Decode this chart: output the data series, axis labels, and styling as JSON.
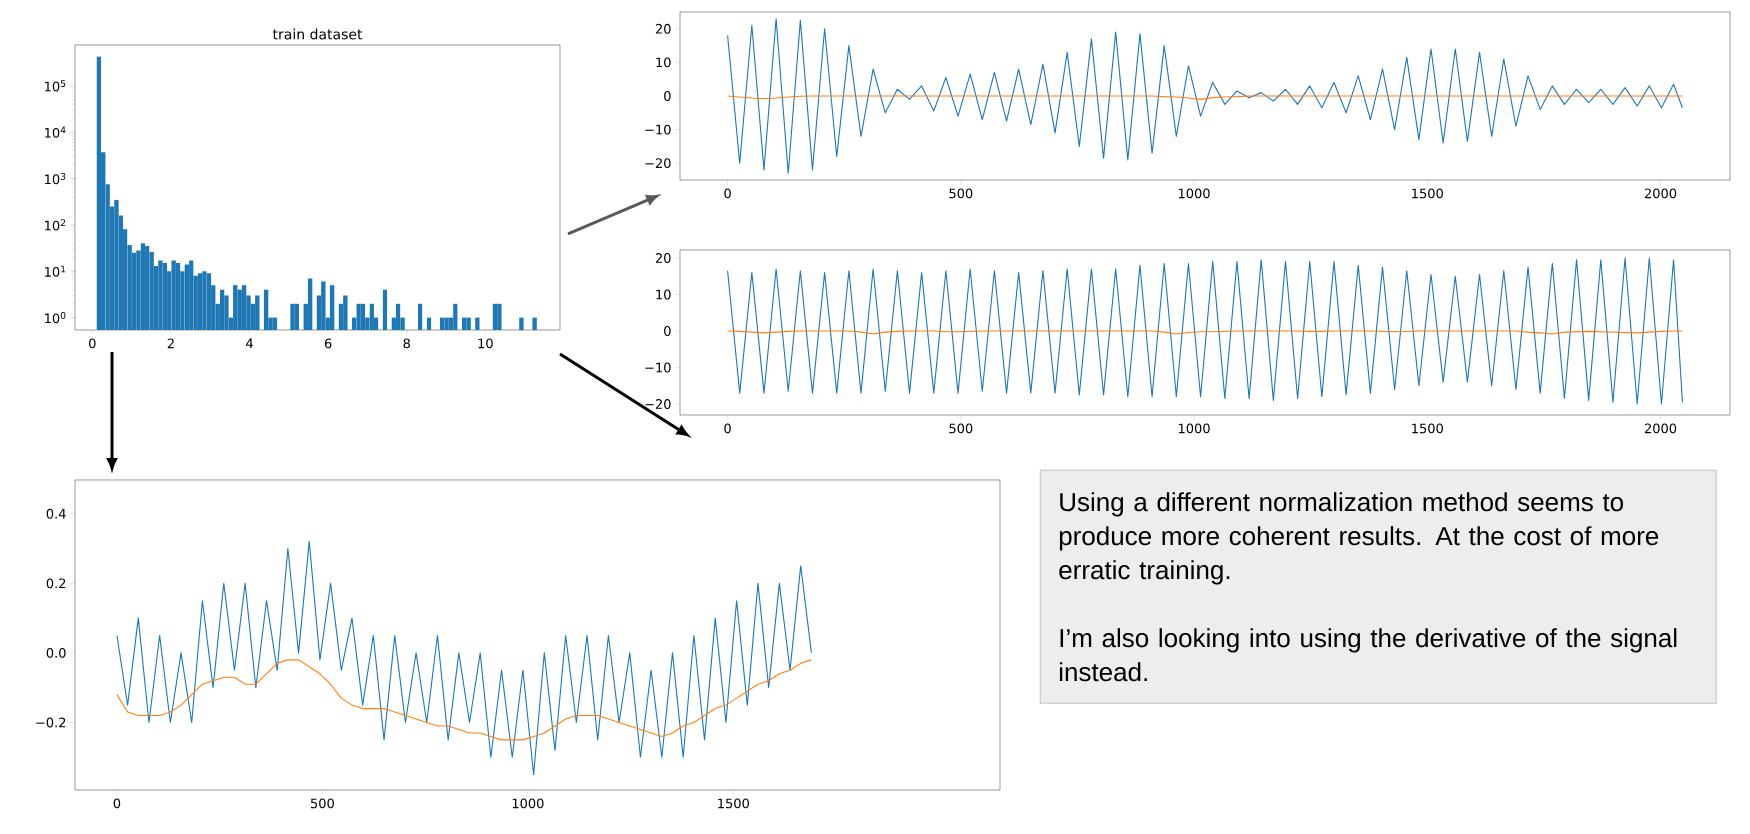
{
  "chart_data": [
    {
      "type": "histogram",
      "title": "train dataset",
      "color": "#1f77b4",
      "log": "y",
      "bins": [
        0.11,
        0.222,
        0.334,
        0.446,
        0.558,
        0.67,
        0.782,
        0.894,
        1.006,
        1.118,
        1.23,
        1.342,
        1.454,
        1.566,
        1.678,
        1.79,
        1.902,
        2.014,
        2.126,
        2.238,
        2.35,
        2.462,
        2.574,
        2.686,
        2.798,
        2.91,
        3.022,
        3.134,
        3.246,
        3.358,
        3.47,
        3.582,
        3.694,
        3.806,
        3.918,
        4.03,
        4.142,
        4.254,
        4.366,
        4.478,
        4.59,
        4.702,
        4.814,
        4.926,
        5.038,
        5.15,
        5.262,
        5.374,
        5.486,
        5.598,
        5.71,
        5.822,
        5.934,
        6.046,
        6.158,
        6.27,
        6.382,
        6.494,
        6.606,
        6.718,
        6.83,
        6.942,
        7.054,
        7.166,
        7.278,
        7.39,
        7.502,
        7.614,
        7.726,
        7.838,
        7.95,
        8.062,
        8.174,
        8.286,
        8.398,
        8.51,
        8.622,
        8.734,
        8.846,
        8.958,
        9.07,
        9.182,
        9.294,
        9.406,
        9.518,
        9.63,
        9.742,
        9.854,
        9.966,
        10.078,
        10.19,
        10.302,
        10.414,
        10.526,
        10.638,
        10.75,
        10.862,
        10.974,
        11.086,
        11.198,
        11.31
      ],
      "values": [
        430000,
        3700,
        750,
        250,
        345,
        160,
        80,
        37,
        25,
        28,
        40,
        35,
        26,
        13,
        17,
        15,
        10,
        17,
        15,
        10,
        14,
        17,
        8,
        9,
        10,
        9,
        5,
        2,
        4,
        3,
        1,
        5,
        4,
        5,
        3,
        2,
        3,
        null,
        4,
        1,
        1,
        null,
        null,
        null,
        2,
        2,
        null,
        2,
        7,
        null,
        3,
        6,
        1,
        5,
        null,
        2,
        3,
        null,
        1,
        2,
        2,
        1,
        2,
        1,
        null,
        4,
        null,
        1,
        2,
        1,
        null,
        null,
        null,
        2,
        null,
        1,
        null,
        null,
        1,
        1,
        1,
        2,
        null,
        1,
        1,
        null,
        1,
        null,
        null,
        null,
        2,
        2,
        null,
        null,
        null,
        null,
        1,
        null,
        null,
        1
      ],
      "xlim": [
        -0.44,
        11.9
      ],
      "ylim": [
        0.54,
        760000
      ],
      "xticks": [
        0,
        2,
        4,
        6,
        8,
        10
      ],
      "yticks": [
        {
          "value": 1,
          "label": "10$^{0}$"
        },
        {
          "value": 10,
          "label": "10$^{1}$"
        },
        {
          "value": 100,
          "label": "10$^{2}$"
        },
        {
          "value": 1000,
          "label": "10$^{3}$"
        },
        {
          "value": 10000,
          "label": "10$^{4}$"
        },
        {
          "value": 100000,
          "label": "10$^{5}$"
        }
      ]
    },
    {
      "type": "line",
      "x": [
        0,
        26,
        52,
        78,
        104,
        130,
        156,
        182,
        208,
        234,
        260,
        286,
        312,
        338,
        364,
        390,
        416,
        442,
        468,
        494,
        520,
        546,
        572,
        598,
        624,
        650,
        676,
        702,
        728,
        754,
        780,
        806,
        832,
        858,
        884,
        910,
        936,
        962,
        988,
        1014,
        1040,
        1066,
        1092,
        1118,
        1144,
        1170,
        1196,
        1222,
        1248,
        1274,
        1300,
        1326,
        1352,
        1378,
        1404,
        1430,
        1456,
        1482,
        1508,
        1534,
        1560,
        1586,
        1612,
        1638,
        1664,
        1690,
        1716,
        1742,
        1768,
        1794,
        1820,
        1846,
        1872,
        1898,
        1924,
        1950,
        1976,
        2002,
        2028,
        2047
      ],
      "series": [
        {
          "color": "#1f77b4",
          "values": [
            18,
            -20,
            21,
            -22,
            23,
            -23,
            22.5,
            -22,
            20,
            -18,
            15,
            -12,
            8,
            -5,
            2,
            -1,
            3,
            -4.5,
            5.5,
            -6,
            6.5,
            -7,
            7,
            -7.5,
            8,
            -8.5,
            9.5,
            -11,
            13,
            -15,
            17,
            -18.5,
            19,
            -19,
            18.5,
            -17,
            15,
            -12,
            9,
            -6,
            4,
            -2.5,
            1.5,
            -0.5,
            1,
            -1.5,
            2,
            -2.5,
            3,
            -3.5,
            4,
            -5,
            6,
            -7,
            8,
            -10,
            11.5,
            -13,
            14,
            -14,
            14,
            -13.5,
            13,
            -12,
            11,
            -9,
            6,
            -4,
            3,
            -2.5,
            2,
            -2,
            2,
            -2.5,
            2.5,
            -3,
            3,
            -3.5,
            3.5,
            -3.5
          ]
        },
        {
          "color": "#ff7f0e",
          "values": [
            0,
            -0.3,
            -0.6,
            -0.8,
            -0.6,
            -0.3,
            -0.1,
            0,
            0,
            0,
            0,
            0,
            0,
            0,
            0,
            0,
            0,
            0,
            0,
            0,
            0,
            0,
            0,
            0,
            0,
            0,
            0,
            0,
            0,
            0,
            0,
            0,
            0,
            0,
            0,
            0,
            -0.2,
            -0.3,
            -0.6,
            -1,
            -0.5,
            -0.3,
            -0.2,
            0,
            0,
            0,
            0,
            0,
            0,
            0,
            0,
            0,
            0,
            0,
            0,
            0,
            0,
            0,
            0,
            0,
            0,
            0,
            0,
            0,
            0,
            0,
            0,
            0,
            0,
            0,
            0,
            0,
            0,
            0,
            0,
            0,
            0,
            0,
            0,
            0
          ]
        }
      ],
      "xlim": [
        -102,
        2149
      ],
      "ylim": [
        -25,
        25
      ],
      "xticks": [
        0,
        500,
        1000,
        1500,
        2000
      ],
      "yticks": [
        {
          "value": -20,
          "label": "−20"
        },
        {
          "value": -10,
          "label": "−10"
        },
        0,
        10,
        20
      ]
    },
    {
      "type": "line",
      "x": [
        0,
        26,
        52,
        78,
        104,
        130,
        156,
        182,
        208,
        234,
        260,
        286,
        312,
        338,
        364,
        390,
        416,
        442,
        468,
        494,
        520,
        546,
        572,
        598,
        624,
        650,
        676,
        702,
        728,
        754,
        780,
        806,
        832,
        858,
        884,
        910,
        936,
        962,
        988,
        1014,
        1040,
        1066,
        1092,
        1118,
        1144,
        1170,
        1196,
        1222,
        1248,
        1274,
        1300,
        1326,
        1352,
        1378,
        1404,
        1430,
        1456,
        1482,
        1508,
        1534,
        1560,
        1586,
        1612,
        1638,
        1664,
        1690,
        1716,
        1742,
        1768,
        1794,
        1820,
        1846,
        1872,
        1898,
        1924,
        1950,
        1976,
        2002,
        2028,
        2047
      ],
      "series": [
        {
          "color": "#1f77b4",
          "values": [
            16.5,
            -17,
            16,
            -17,
            17,
            -16.5,
            16.5,
            -17,
            16,
            -17,
            16.5,
            -17,
            17,
            -16.5,
            16.5,
            -17,
            16,
            -17,
            16.5,
            -17,
            17,
            -16.5,
            16.5,
            -17,
            16,
            -17,
            16.5,
            -17,
            17,
            -17.5,
            17,
            -17.5,
            17,
            -18,
            18,
            -18,
            18.5,
            -18,
            18.5,
            -18,
            19,
            -18.5,
            19,
            -18.5,
            19.5,
            -19,
            19,
            -18.5,
            19,
            -18,
            19,
            -17.5,
            18,
            -17,
            17.5,
            -16,
            16.5,
            -15,
            15.5,
            -14,
            15,
            -14,
            15.5,
            -15,
            16.5,
            -16,
            17.5,
            -17,
            18.5,
            -18.5,
            19.5,
            -19,
            19.5,
            -19.5,
            20,
            -20,
            20,
            -20,
            19.5,
            -19.5
          ]
        },
        {
          "color": "#ff7f0e",
          "values": [
            0,
            -0.1,
            -0.3,
            -0.5,
            -0.3,
            -0.1,
            0,
            0,
            0,
            0,
            0,
            -0.3,
            -0.8,
            -0.3,
            -0.1,
            0,
            0,
            0,
            -0.2,
            -0.2,
            -0.1,
            0,
            0,
            0,
            0,
            0,
            0,
            0,
            0,
            0,
            0,
            0,
            0,
            0,
            0,
            0,
            -0.3,
            -0.8,
            -0.4,
            -0.2,
            -0.2,
            -0.1,
            0,
            0,
            0,
            0,
            0,
            0,
            -0.1,
            -0.1,
            0,
            0,
            0,
            0,
            -0.1,
            -0.2,
            -0.1,
            0,
            0,
            0,
            0,
            0,
            0,
            0,
            0,
            0,
            -0.3,
            -0.5,
            -0.8,
            -0.3,
            -0.2,
            -0.1,
            -0.2,
            -0.3,
            -0.4,
            -0.5,
            -0.3,
            -0.1,
            0,
            0
          ]
        }
      ],
      "xlim": [
        -102,
        2149
      ],
      "ylim": [
        -23,
        22.2
      ],
      "xticks": [
        0,
        500,
        1000,
        1500,
        2000
      ],
      "yticks": [
        {
          "value": -20,
          "label": "−20"
        },
        {
          "value": -10,
          "label": "−10"
        },
        0,
        10,
        20
      ]
    },
    {
      "type": "line",
      "x": [
        0,
        26,
        52,
        78,
        104,
        130,
        156,
        182,
        208,
        234,
        260,
        286,
        312,
        338,
        364,
        390,
        416,
        442,
        468,
        494,
        520,
        546,
        572,
        598,
        624,
        650,
        676,
        702,
        728,
        754,
        780,
        806,
        832,
        858,
        884,
        910,
        936,
        962,
        988,
        1014,
        1040,
        1066,
        1092,
        1118,
        1144,
        1170,
        1196,
        1222,
        1248,
        1274,
        1300,
        1326,
        1352,
        1378,
        1404,
        1430,
        1456,
        1482,
        1508,
        1534,
        1560,
        1586,
        1612,
        1638,
        1664,
        1690
      ],
      "series": [
        {
          "color": "#1f77b4",
          "values": [
            0.05,
            -0.15,
            0.1,
            -0.2,
            0.05,
            -0.2,
            0.0,
            -0.2,
            0.15,
            -0.1,
            0.2,
            -0.05,
            0.2,
            -0.1,
            0.15,
            -0.05,
            0.3,
            0.0,
            0.32,
            -0.02,
            0.2,
            -0.05,
            0.1,
            -0.15,
            0.05,
            -0.25,
            0.05,
            -0.2,
            0.0,
            -0.2,
            0.05,
            -0.25,
            0.0,
            -0.2,
            0.0,
            -0.3,
            -0.05,
            -0.3,
            -0.05,
            -0.35,
            0.0,
            -0.28,
            0.05,
            -0.2,
            0.05,
            -0.25,
            0.05,
            -0.2,
            0.0,
            -0.3,
            -0.05,
            -0.3,
            0.0,
            -0.3,
            0.05,
            -0.25,
            0.1,
            -0.2,
            0.15,
            -0.15,
            0.2,
            -0.1,
            0.2,
            -0.05,
            0.25,
            0.0
          ]
        },
        {
          "color": "#ff7f0e",
          "values": [
            -0.12,
            -0.17,
            -0.18,
            -0.18,
            -0.18,
            -0.17,
            -0.15,
            -0.12,
            -0.09,
            -0.08,
            -0.07,
            -0.07,
            -0.09,
            -0.09,
            -0.06,
            -0.03,
            -0.02,
            -0.02,
            -0.04,
            -0.06,
            -0.09,
            -0.13,
            -0.15,
            -0.16,
            -0.16,
            -0.16,
            -0.17,
            -0.18,
            -0.19,
            -0.2,
            -0.21,
            -0.21,
            -0.22,
            -0.23,
            -0.23,
            -0.24,
            -0.25,
            -0.25,
            -0.25,
            -0.24,
            -0.23,
            -0.21,
            -0.19,
            -0.18,
            -0.18,
            -0.18,
            -0.19,
            -0.2,
            -0.21,
            -0.22,
            -0.23,
            -0.24,
            -0.23,
            -0.21,
            -0.2,
            -0.18,
            -0.16,
            -0.15,
            -0.13,
            -0.11,
            -0.09,
            -0.08,
            -0.06,
            -0.05,
            -0.03,
            -0.02
          ]
        }
      ],
      "xlim": [
        -102,
        2149
      ],
      "ylim": [
        -0.394,
        0.497
      ],
      "xticks": [
        0,
        500,
        1000,
        1500
      ],
      "yticks": [
        {
          "value": -0.2,
          "label": "−0.2"
        },
        {
          "value": 0,
          "label": "0.0"
        },
        0.2,
        0.4
      ]
    },
    {
      "type": "other",
      "annotations": [
        "Using a different normalization method seems to produce more coherent results. At the cost of more erratic training.",
        "I’m also looking into using the derivative of the signal instead."
      ]
    }
  ]
}
